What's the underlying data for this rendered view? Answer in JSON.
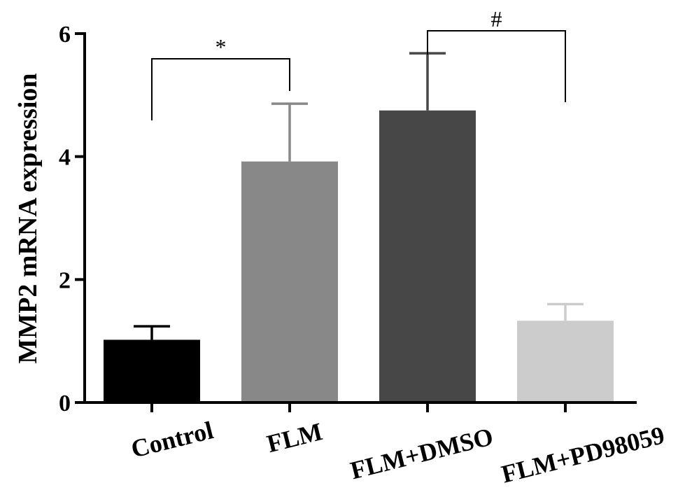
{
  "chart_data": {
    "type": "bar",
    "categories": [
      "Control",
      "FLM",
      "FLM+DMSO",
      "FLM+PD98059"
    ],
    "values": [
      1.02,
      3.92,
      4.75,
      1.33
    ],
    "errors": [
      0.22,
      0.94,
      0.93,
      0.27
    ],
    "colors": [
      "#000000",
      "#888888",
      "#474747",
      "#cccccc"
    ],
    "ylabel": "MMP2 mRNA expression",
    "ylim": [
      0,
      6
    ],
    "yticks": [
      "0",
      "2",
      "4",
      "6"
    ],
    "grid": false,
    "significance": [
      {
        "from": "Control",
        "to": "FLM",
        "label": "*"
      },
      {
        "from": "FLM+DMSO",
        "to": "FLM+PD98059",
        "label": "#"
      }
    ]
  }
}
